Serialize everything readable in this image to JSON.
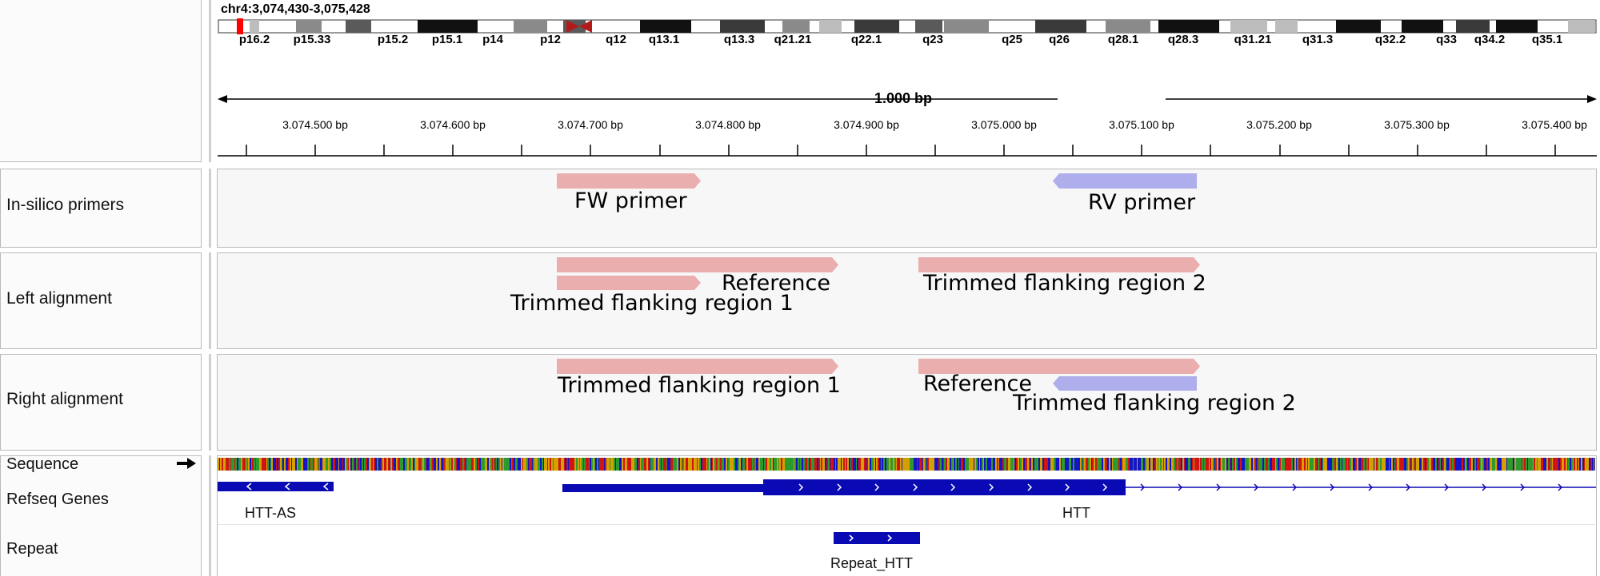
{
  "locus": "chr4:3,074,430-3,075,428",
  "ideogram_bands": [
    "p16.2",
    "p15.33",
    "p15.2",
    "p15.1",
    "p14",
    "p12",
    "q12",
    "q13.1",
    "q13.3",
    "q21.21",
    "q22.1",
    "q23",
    "q25",
    "q26",
    "q28.1",
    "q28.3",
    "q31.21",
    "q31.3",
    "q32.2",
    "q33",
    "q34.2",
    "q35.1"
  ],
  "ruler": {
    "span_label": "1.000 bp",
    "ticks": [
      "3.074.500 bp",
      "3.074.600 bp",
      "3.074.700 bp",
      "3.074.800 bp",
      "3.074.900 bp",
      "3.075.000 bp",
      "3.075.100 bp",
      "3.075.200 bp",
      "3.075.300 bp",
      "3.075.400 bp"
    ]
  },
  "tracks": {
    "primers": {
      "label": "In-silico primers",
      "fw_label": "FW primer",
      "rv_label": "RV primer"
    },
    "left_alignment": {
      "label": "Left alignment",
      "reference_label": "Reference",
      "flank1_label": "Trimmed flanking region 1",
      "flank2_label": "Trimmed flanking region 2"
    },
    "right_alignment": {
      "label": "Right alignment",
      "flank1_label": "Trimmed flanking region 1",
      "reference_label": "Reference",
      "flank2_label": "Trimmed flanking region 2"
    },
    "sequence": {
      "label": "Sequence",
      "arrow_icon": "right-arrow-icon"
    },
    "refseq": {
      "label": "Refseq Genes",
      "gene1": "HTT-AS",
      "gene2": "HTT"
    },
    "repeat": {
      "label": "Repeat",
      "feature": "Repeat_HTT"
    }
  },
  "colors": {
    "pink_feature": "#ebaeae",
    "blue_feature": "#adaeeb",
    "gene_blue": "#0a0ab4",
    "centromere": "#b21b1b",
    "highlight": "#ff0000"
  }
}
